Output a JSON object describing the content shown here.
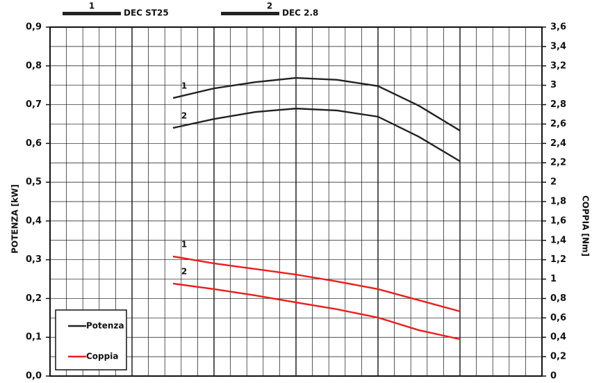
{
  "chart_data": {
    "type": "line",
    "ylabel": "POTENZA [kW]",
    "y2label": "COPPIA [Nm]",
    "models": [
      {
        "number": "1",
        "name": "DEC ST25"
      },
      {
        "number": "2",
        "name": "DEC 2.8"
      }
    ],
    "measures": [
      {
        "name": "Potenza",
        "color": "#222222"
      },
      {
        "name": "Coppia",
        "color": "#ee1c1c"
      }
    ],
    "xlim": [
      0,
      30
    ],
    "xticks": [
      0,
      1,
      2,
      3,
      4,
      5,
      6,
      7,
      8,
      9,
      10,
      11,
      12,
      13,
      14,
      15,
      16,
      17,
      18,
      19,
      20,
      21,
      22,
      23,
      24,
      25,
      26,
      27,
      28,
      29,
      30
    ],
    "ylim": [
      0,
      0.9
    ],
    "yticks": [
      {
        "value": 0,
        "label": "0,0"
      },
      {
        "value": 0.1,
        "label": "0,1"
      },
      {
        "value": 0.2,
        "label": "0,2"
      },
      {
        "value": 0.3,
        "label": "0,3"
      },
      {
        "value": 0.4,
        "label": "0,4"
      },
      {
        "value": 0.5,
        "label": "0,5"
      },
      {
        "value": 0.6,
        "label": "0,6"
      },
      {
        "value": 0.7,
        "label": "0,7"
      },
      {
        "value": 0.8,
        "label": "0,8"
      },
      {
        "value": 0.9,
        "label": "0,9"
      }
    ],
    "y2lim": [
      0,
      3.6
    ],
    "y2ticks": [
      0,
      {
        "value": 0.2,
        "label": "0,2"
      },
      {
        "value": 0.4,
        "label": "0,4"
      },
      {
        "value": 0.6,
        "label": "0,6"
      },
      {
        "value": 0.8,
        "label": "0,8"
      },
      1,
      {
        "value": 1.2,
        "label": "1,2"
      },
      {
        "value": 1.4,
        "label": "1,4"
      },
      {
        "value": 1.6,
        "label": "1,6"
      },
      {
        "value": 1.8,
        "label": "1,8"
      },
      2,
      {
        "value": 2.2,
        "label": "2,2"
      },
      {
        "value": 2.4,
        "label": "2,4"
      },
      {
        "value": 2.6,
        "label": "2,6"
      },
      {
        "value": 2.8,
        "label": "2,8"
      },
      3,
      {
        "value": 3.2,
        "label": "3,2"
      },
      {
        "value": 3.4,
        "label": "3,4"
      },
      {
        "value": 3.6,
        "label": "3,6"
      }
    ],
    "grid": true,
    "x": [
      7.5,
      10,
      12.5,
      15,
      17.5,
      20,
      22.5,
      25
    ],
    "series": [
      {
        "name": "1",
        "color": "#222222",
        "values": [
          0.717,
          0.742,
          0.758,
          0.769,
          0.764,
          0.748,
          0.697,
          0.633
        ]
      },
      {
        "name": "2",
        "color": "#222222",
        "values": [
          0.64,
          0.663,
          0.681,
          0.69,
          0.685,
          0.669,
          0.617,
          0.554
        ]
      },
      {
        "name": "1",
        "color": "#ee1c1c",
        "axis": "y2",
        "values": [
          1.234,
          1.162,
          1.105,
          1.047,
          0.976,
          0.897,
          0.782,
          0.667
        ]
      },
      {
        "name": "2",
        "color": "#ee1c1c",
        "axis": "y2",
        "values": [
          0.954,
          0.897,
          0.832,
          0.76,
          0.689,
          0.603,
          0.473,
          0.38
        ]
      }
    ]
  }
}
